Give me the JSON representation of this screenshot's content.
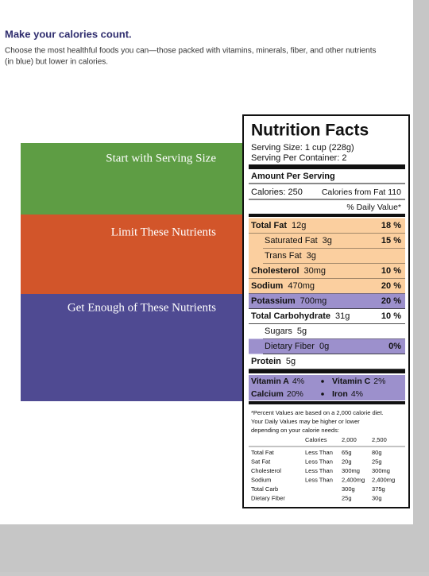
{
  "header": {
    "title": "Make your calories count.",
    "intro": [
      "Choose the most healthful foods you can—those packed with vitamins, minerals, fiber, and other nutrients",
      "(in blue) but lower in calories."
    ]
  },
  "bands": [
    "Start with Serving Size",
    "Limit These Nutrients",
    "Get Enough of These Nutrients"
  ],
  "label": {
    "title": "Nutrition Facts",
    "serving_size": "Serving Size: 1 cup (228g)",
    "servings_per_container": "Serving Per Container: 2",
    "amount_per_serving": "Amount Per Serving",
    "calories": "Calories: 250",
    "calories_from_fat": "Calories from Fat 110",
    "daily_value_header": "% Daily Value*",
    "nutrients": [
      {
        "name": "Total Fat",
        "amount": "12g",
        "dv": "18 %"
      },
      {
        "name": "Saturated Fat",
        "amount": "3g",
        "dv": "15 %"
      },
      {
        "name": "Trans Fat",
        "amount": "3g"
      },
      {
        "name": "Cholesterol",
        "amount": "30mg",
        "dv": "10 %"
      },
      {
        "name": "Sodium",
        "amount": "470mg",
        "dv": "20 %"
      },
      {
        "name": "Potassium",
        "amount": "700mg",
        "dv": "20 %"
      },
      {
        "name": "Total Carbohydrate",
        "amount": "31g",
        "dv": "10 %"
      },
      {
        "name": "Sugars",
        "amount": "5g"
      },
      {
        "name": "Dietary Fiber",
        "amount": "0g",
        "dv": "0%"
      },
      {
        "name": "Protein",
        "amount": "5g"
      }
    ],
    "vitamins": [
      [
        {
          "name": "Vitamin A",
          "value": "4%"
        },
        {
          "name": "Vitamin C",
          "value": "2%"
        }
      ],
      [
        {
          "name": "Calcium",
          "value": "20%"
        },
        {
          "name": "Iron",
          "value": "4%"
        }
      ]
    ],
    "footnote": [
      "*Percent Values are based on a 2,000 calorie diet.",
      "Your Daily Values may be higher or lower",
      "depending on your calorie needs:"
    ],
    "footnote_columns": [
      "Calories",
      "2,000",
      "2,500"
    ],
    "footnote_rows": [
      {
        "nutrient": "Total Fat",
        "limit": "Less Than",
        "v2000": "65g",
        "v2500": "80g"
      },
      {
        "nutrient": "Sat Fat",
        "limit": "Less Than",
        "v2000": "20g",
        "v2500": "25g"
      },
      {
        "nutrient": "Cholesterol",
        "limit": "Less Than",
        "v2000": "300mg",
        "v2500": "300mg"
      },
      {
        "nutrient": "Sodium",
        "limit": "Less Than",
        "v2000": "2,400mg",
        "v2500": "2,400mg"
      },
      {
        "nutrient": "Total Carb",
        "v2000": "300g",
        "v2500": "375g"
      },
      {
        "nutrient": "Dietary Fiber",
        "v2000": "25g",
        "v2500": "30g"
      }
    ]
  }
}
